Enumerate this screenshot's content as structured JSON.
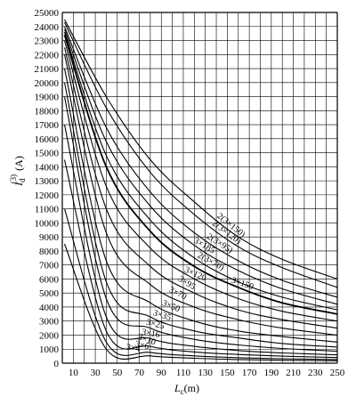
{
  "chart_data": {
    "type": "line",
    "title": "",
    "xlabel": "L_c(m)",
    "xlabel_main": "L",
    "xlabel_sub": "c",
    "xlabel_unit": "(m)",
    "ylabel": "I_d^(3) (A)",
    "ylabel_main": "I",
    "ylabel_sub": "d",
    "ylabel_sup": "(3)",
    "ylabel_unit": "(A)",
    "xlim": [
      0,
      250
    ],
    "ylim": [
      0,
      25000
    ],
    "grid": true,
    "x_ticks": [
      10,
      30,
      50,
      70,
      90,
      110,
      130,
      150,
      170,
      190,
      210,
      230,
      250
    ],
    "y_ticks": [
      0,
      1000,
      2000,
      3000,
      4000,
      5000,
      6000,
      7000,
      8000,
      9000,
      10000,
      11000,
      12000,
      13000,
      14000,
      15000,
      16000,
      17000,
      18000,
      19000,
      20000,
      21000,
      22000,
      23000,
      24000,
      25000
    ],
    "series": [
      {
        "name": "2(3×150)",
        "values": [
          [
            2,
            24500
          ],
          [
            40,
            19000
          ],
          [
            80,
            14500
          ],
          [
            120,
            11500
          ],
          [
            160,
            9000
          ],
          [
            200,
            7400
          ],
          [
            250,
            6000
          ]
        ]
      },
      {
        "name": "2(3×120)",
        "values": [
          [
            2,
            24300
          ],
          [
            40,
            18200
          ],
          [
            80,
            13600
          ],
          [
            120,
            10600
          ],
          [
            160,
            8300
          ],
          [
            200,
            6800
          ],
          [
            250,
            5400
          ]
        ]
      },
      {
        "name": "2(3×95)",
        "values": [
          [
            2,
            24000
          ],
          [
            40,
            16800
          ],
          [
            80,
            12200
          ],
          [
            120,
            9300
          ],
          [
            160,
            7300
          ],
          [
            200,
            5900
          ],
          [
            250,
            4700
          ]
        ]
      },
      {
        "name": "3×185",
        "values": [
          [
            2,
            23800
          ],
          [
            40,
            15800
          ],
          [
            80,
            11200
          ],
          [
            120,
            8400
          ],
          [
            160,
            6600
          ],
          [
            200,
            5300
          ],
          [
            250,
            4200
          ]
        ]
      },
      {
        "name": "2(3×70)",
        "values": [
          [
            2,
            23600
          ],
          [
            40,
            14800
          ],
          [
            80,
            10200
          ],
          [
            120,
            7500
          ],
          [
            160,
            5800
          ],
          [
            200,
            4700
          ],
          [
            250,
            3800
          ]
        ]
      },
      {
        "name": "3×150",
        "values": [
          [
            2,
            23400
          ],
          [
            40,
            14000
          ],
          [
            80,
            9400
          ],
          [
            120,
            6900
          ],
          [
            160,
            5400
          ],
          [
            200,
            4300
          ],
          [
            250,
            3500
          ]
        ]
      },
      {
        "name": "3×120",
        "values": [
          [
            2,
            23000
          ],
          [
            40,
            12600
          ],
          [
            80,
            8200
          ],
          [
            120,
            6000
          ],
          [
            160,
            4600
          ],
          [
            200,
            3700
          ],
          [
            250,
            3000
          ]
        ]
      },
      {
        "name": "3×95",
        "values": [
          [
            2,
            22500
          ],
          [
            40,
            11000
          ],
          [
            80,
            6900
          ],
          [
            120,
            5000
          ],
          [
            160,
            3800
          ],
          [
            200,
            3100
          ],
          [
            250,
            2500
          ]
        ]
      },
      {
        "name": "3×70",
        "values": [
          [
            2,
            22000
          ],
          [
            40,
            9300
          ],
          [
            80,
            5600
          ],
          [
            120,
            4000
          ],
          [
            160,
            3100
          ],
          [
            200,
            2500
          ],
          [
            250,
            2000
          ]
        ]
      },
      {
        "name": "3×50",
        "values": [
          [
            2,
            21000
          ],
          [
            40,
            7300
          ],
          [
            80,
            4300
          ],
          [
            120,
            3000
          ],
          [
            160,
            2300
          ],
          [
            200,
            1900
          ],
          [
            250,
            1500
          ]
        ]
      },
      {
        "name": "3×35",
        "values": [
          [
            2,
            20000
          ],
          [
            40,
            5800
          ],
          [
            80,
            3300
          ],
          [
            120,
            2300
          ],
          [
            160,
            1800
          ],
          [
            200,
            1400
          ],
          [
            250,
            1150
          ]
        ]
      },
      {
        "name": "3×25",
        "values": [
          [
            2,
            19000
          ],
          [
            40,
            4600
          ],
          [
            80,
            2500
          ],
          [
            120,
            1700
          ],
          [
            160,
            1300
          ],
          [
            200,
            1050
          ],
          [
            250,
            850
          ]
        ]
      },
      {
        "name": "3×16",
        "values": [
          [
            2,
            17000
          ],
          [
            40,
            3300
          ],
          [
            80,
            1750
          ],
          [
            120,
            1200
          ],
          [
            160,
            900
          ],
          [
            200,
            730
          ],
          [
            250,
            590
          ]
        ]
      },
      {
        "name": "3×10",
        "values": [
          [
            2,
            14500
          ],
          [
            40,
            2300
          ],
          [
            80,
            1200
          ],
          [
            120,
            800
          ],
          [
            160,
            620
          ],
          [
            200,
            500
          ],
          [
            250,
            400
          ]
        ]
      },
      {
        "name": "3×6",
        "values": [
          [
            2,
            11000
          ],
          [
            40,
            1500
          ],
          [
            80,
            770
          ],
          [
            120,
            520
          ],
          [
            160,
            390
          ],
          [
            200,
            320
          ],
          [
            250,
            260
          ]
        ]
      },
      {
        "name": "3×4",
        "values": [
          [
            2,
            8500
          ],
          [
            40,
            1000
          ],
          [
            80,
            520
          ],
          [
            120,
            350
          ],
          [
            160,
            260
          ],
          [
            200,
            210
          ],
          [
            250,
            170
          ]
        ]
      }
    ]
  }
}
